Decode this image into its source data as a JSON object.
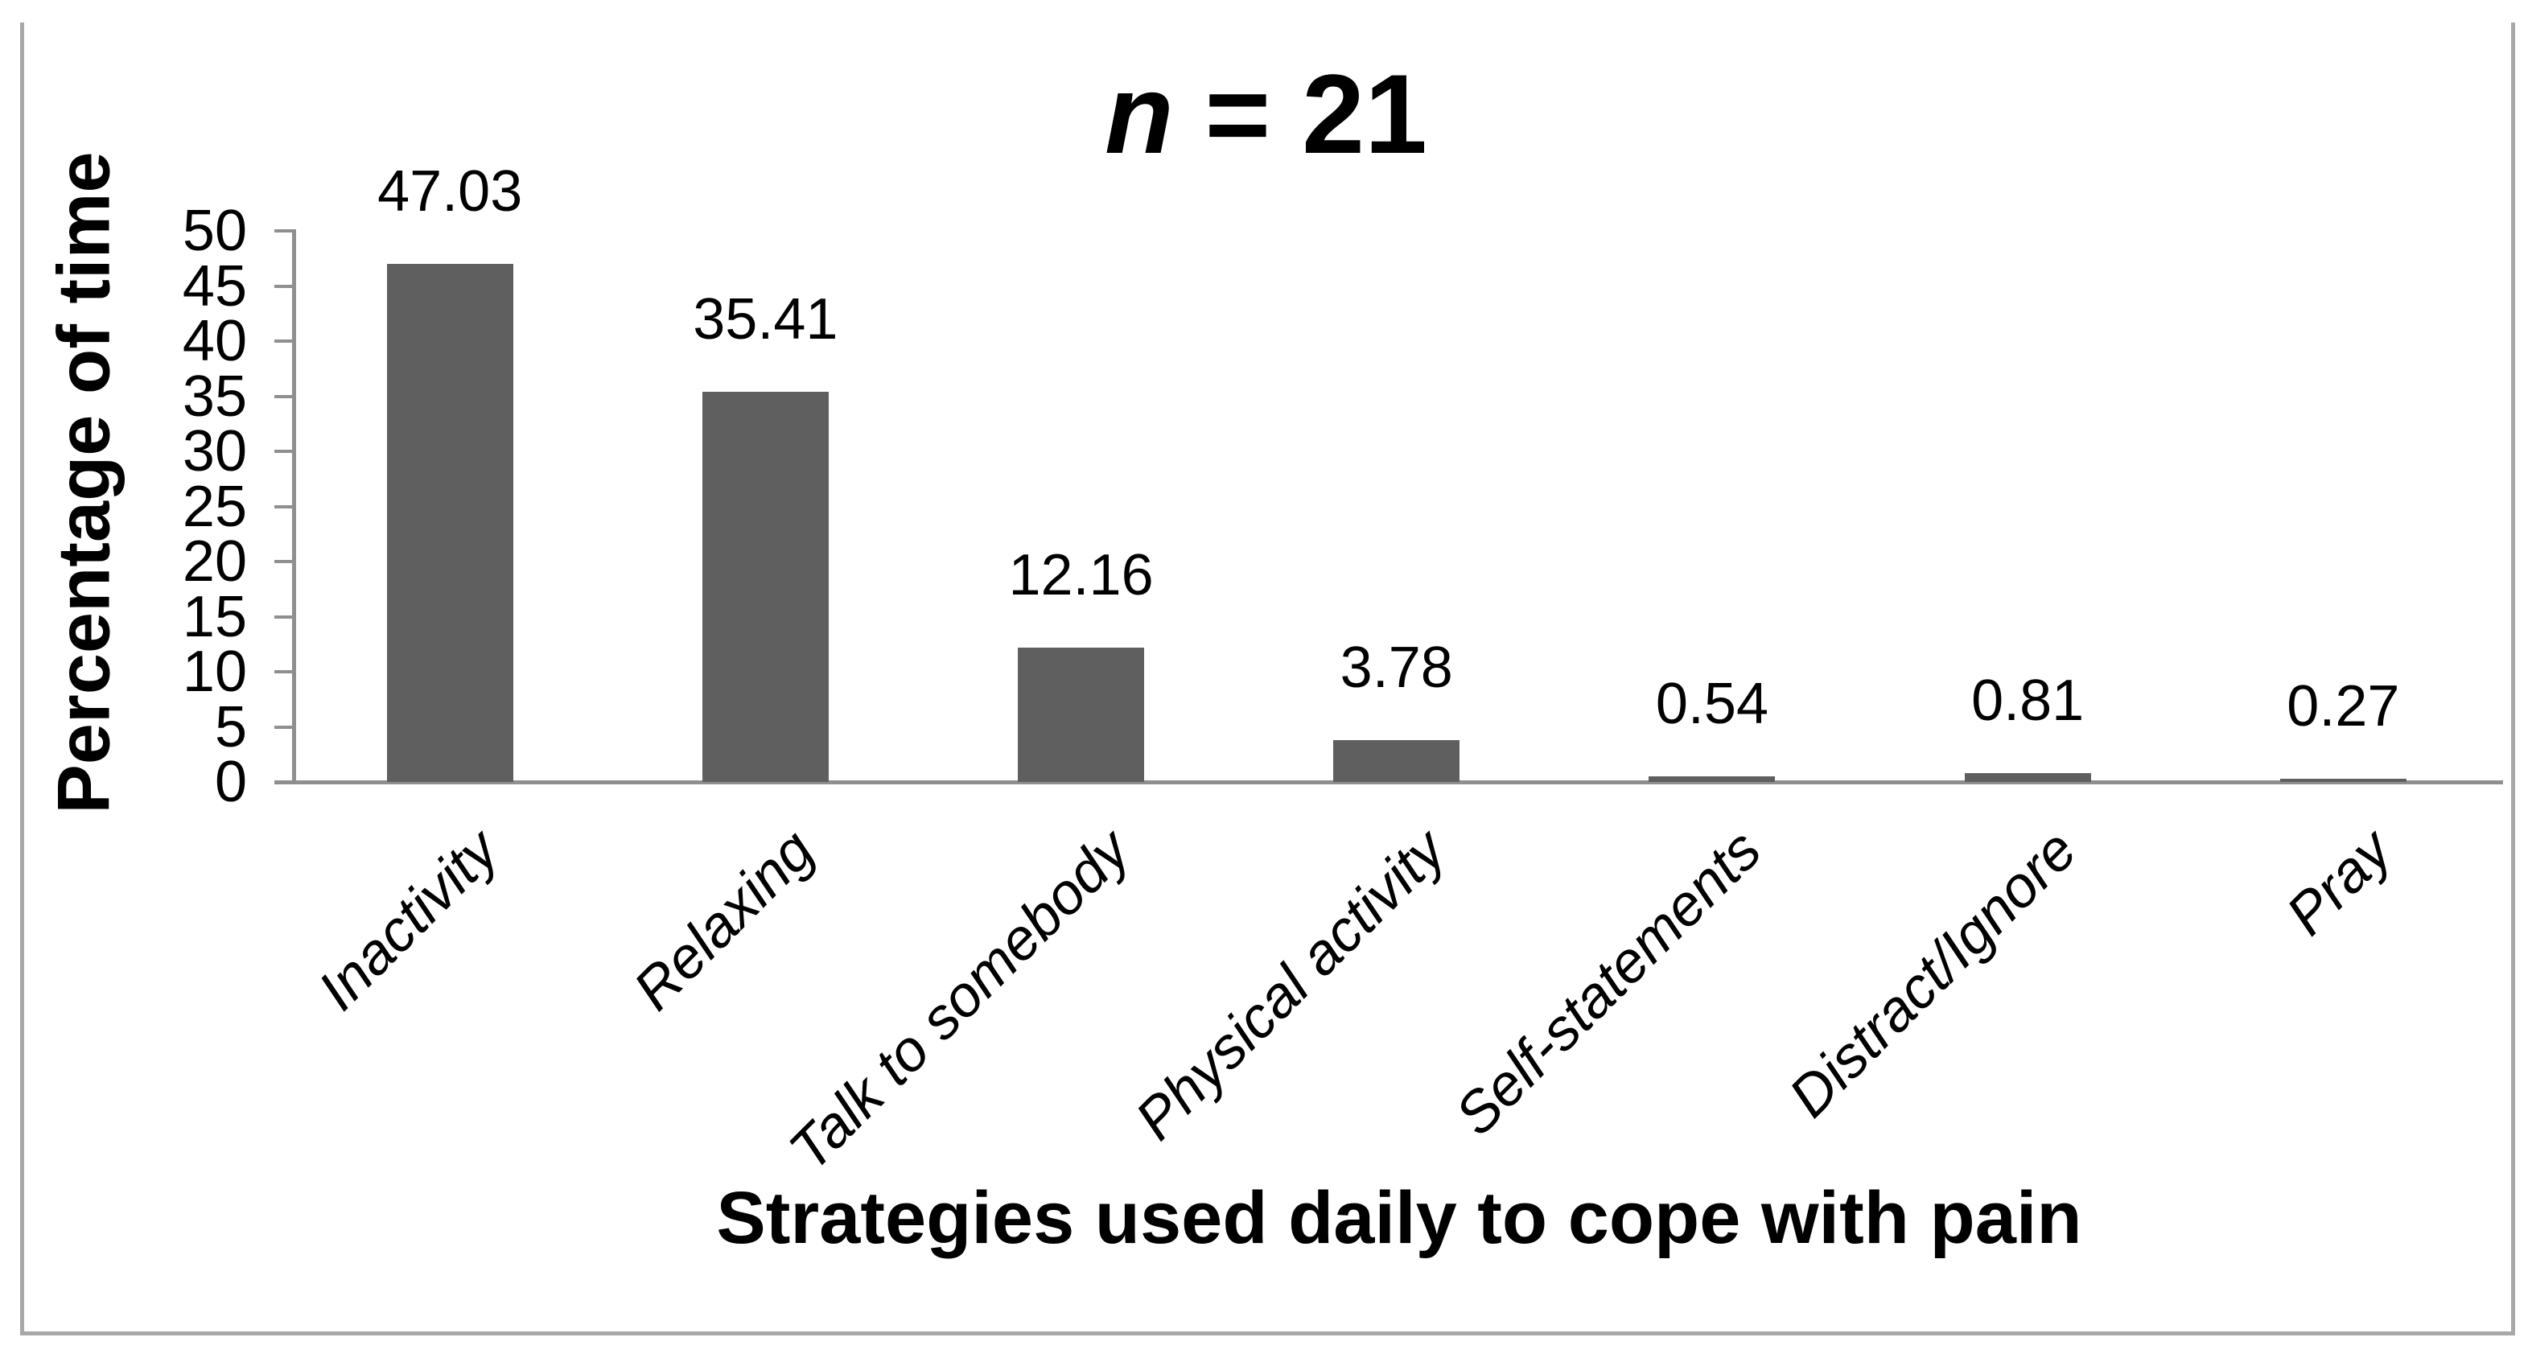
{
  "chart_data": {
    "type": "bar",
    "title": {
      "text": "n = 21",
      "symbol": "n",
      "rest": " = 21"
    },
    "xlabel": "Strategies used daily to cope with pain",
    "ylabel": "Percentage of time",
    "categories": [
      "Inactivity",
      "Relaxing",
      "Talk to somebody",
      "Physical activity",
      "Self-statements",
      "Distract/Ignore",
      "Pray"
    ],
    "values": [
      47.03,
      35.41,
      12.16,
      3.78,
      0.54,
      0.81,
      0.27
    ],
    "value_labels": [
      "47.03",
      "35.41",
      "12.16",
      "3.78",
      "0.54",
      "0.81",
      "0.27"
    ],
    "yticks": [
      0,
      5,
      10,
      15,
      20,
      25,
      30,
      35,
      40,
      45,
      50
    ],
    "ylim": [
      0,
      50
    ],
    "grid": false,
    "legend": false,
    "category_label_angle_deg": -45,
    "bar_color": "#5f5f5f",
    "axis_color": "#8f8f8f",
    "frame_color": "#a8a8a8",
    "text_color": "#000000"
  }
}
